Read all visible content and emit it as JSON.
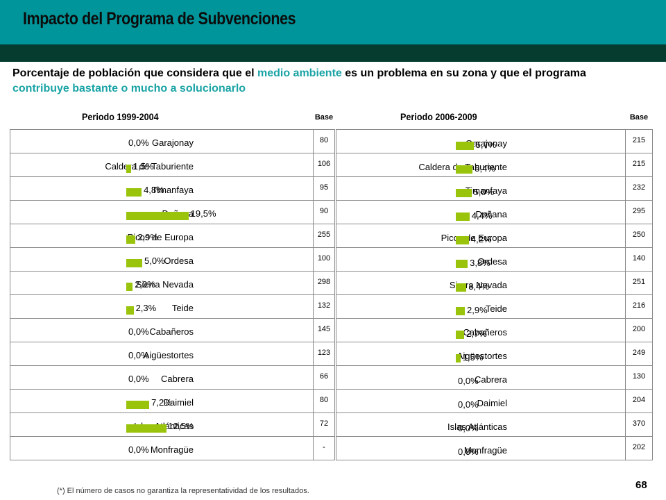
{
  "header": {
    "title": "Impacto del Programa de Subvenciones"
  },
  "subtitle": {
    "part1": "Porcentaje de población que considera que el ",
    "highlight1": "medio ambiente",
    "part2": " es un problema en su zona y que el programa ",
    "highlight2": "contribuye bastante o mucho a solucionarlo"
  },
  "colors": {
    "header_teal": "#00959a",
    "header_dark": "#053c2f",
    "bar": "#99c40b",
    "highlight_text": "#1aa3a5"
  },
  "base_label": "Base",
  "footnote": "(*) El número de casos no garantiza la representatividad de los resultados.",
  "page_number": "68",
  "chart_data": [
    {
      "type": "bar",
      "orientation": "horizontal",
      "title": "Periodo 1999-2004",
      "categories": [
        "Garajonay",
        "Caldera de Taburiente",
        "Timanfaya",
        "Doñana",
        "Picos de Europa",
        "Ordesa",
        "Sierra Nevada",
        "Teide",
        "Cabañeros",
        "Aigüestortes",
        "Cabrera",
        "Daimiel",
        "Islas Atlánticas",
        "Monfragüe"
      ],
      "values": [
        0.0,
        1.5,
        4.8,
        19.5,
        2.9,
        5.0,
        2.0,
        2.3,
        0.0,
        0.0,
        0.0,
        7.2,
        12.5,
        0.0
      ],
      "value_labels": [
        "0,0%",
        "1,5%",
        "4,8%",
        "19,5%",
        "2,9%",
        "5,0%",
        "2,0%",
        "2,3%",
        "0,0%",
        "0,0%",
        "0,0%",
        "7,2%",
        "12,5%",
        "0,0%"
      ],
      "base": [
        "80",
        "106",
        "95",
        "90",
        "255",
        "100",
        "298",
        "132",
        "145",
        "123",
        "66",
        "80",
        "72",
        "-"
      ]
    },
    {
      "type": "bar",
      "orientation": "horizontal",
      "title": "Periodo 2006-2009",
      "categories": [
        "Garajonay",
        "Caldera de Taburiente",
        "Timanfaya",
        "Doñana",
        "Picos de Europa",
        "Ordesa",
        "Sierra Nevada",
        "Teide",
        "Cabañeros",
        "Aigüestortes",
        "Cabrera",
        "Daimiel",
        "Islas Atlánticas",
        "Monfragüe"
      ],
      "values": [
        5.7,
        5.4,
        5.0,
        4.4,
        4.2,
        3.8,
        3.4,
        2.9,
        2.7,
        1.5,
        0.0,
        0.0,
        0.0,
        0.0
      ],
      "value_labels": [
        "5,7%",
        "5,4%",
        "5,0%",
        "4,4%",
        "4,2%",
        "3,8%",
        "3,4%",
        "2,9%",
        "2,7%",
        "1,5%",
        "0,0%",
        "0,0%",
        "0,0%",
        "0,0%"
      ],
      "base": [
        "215",
        "215",
        "232",
        "295",
        "250",
        "140",
        "251",
        "216",
        "200",
        "249",
        "130",
        "204",
        "370",
        "202"
      ]
    }
  ]
}
